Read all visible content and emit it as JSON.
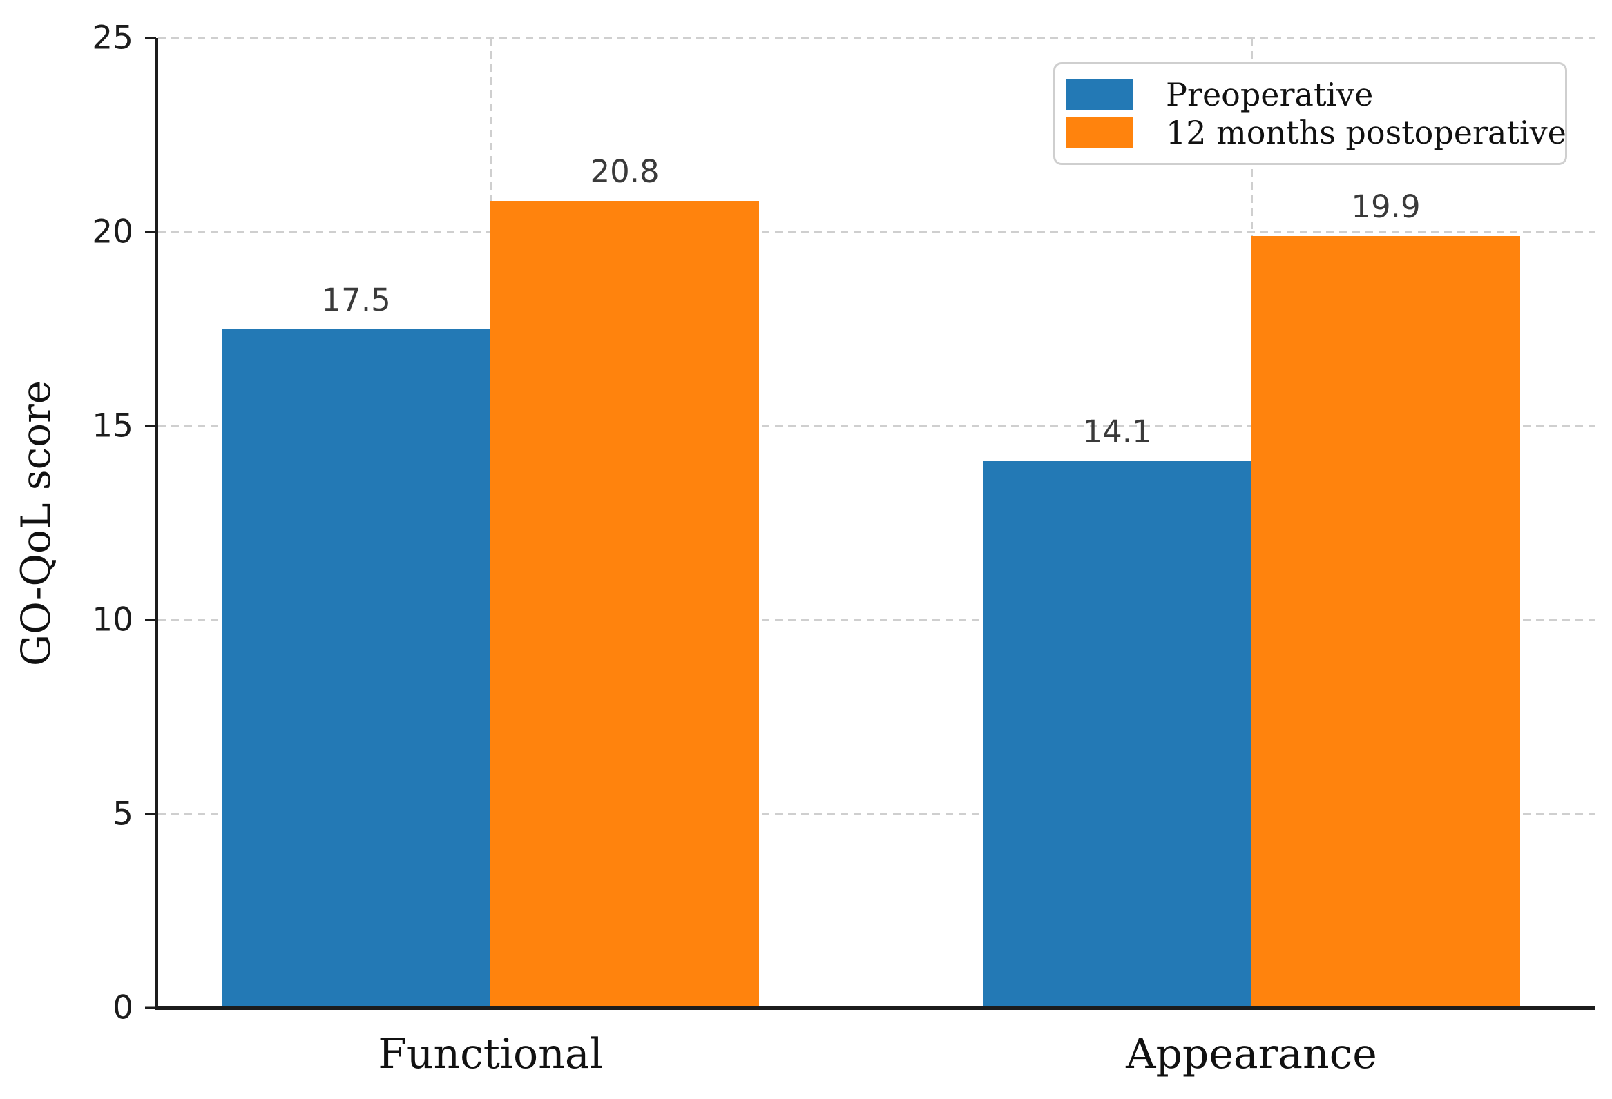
{
  "chart_data": {
    "type": "bar",
    "title": "",
    "categories": [
      "Functional",
      "Appearance"
    ],
    "series": [
      {
        "name": "Preoperative",
        "color": "#2379b5",
        "values": [
          17.5,
          14.1
        ]
      },
      {
        "name": "12 months postoperative",
        "color": "#ff830d",
        "values": [
          20.8,
          19.9
        ]
      }
    ],
    "value_labels": [
      [
        "17.5",
        "14.1"
      ],
      [
        "20.8",
        "19.9"
      ]
    ],
    "xlabel": "",
    "ylabel": "GO-QoL score",
    "ylim": [
      0,
      25
    ],
    "yticks": [
      "0",
      "5",
      "10",
      "15",
      "20",
      "25"
    ],
    "grid": {
      "show": true,
      "style": "dashed",
      "color": "#cfcfcf",
      "axes": "both"
    },
    "legend": {
      "position": "upper right"
    }
  }
}
